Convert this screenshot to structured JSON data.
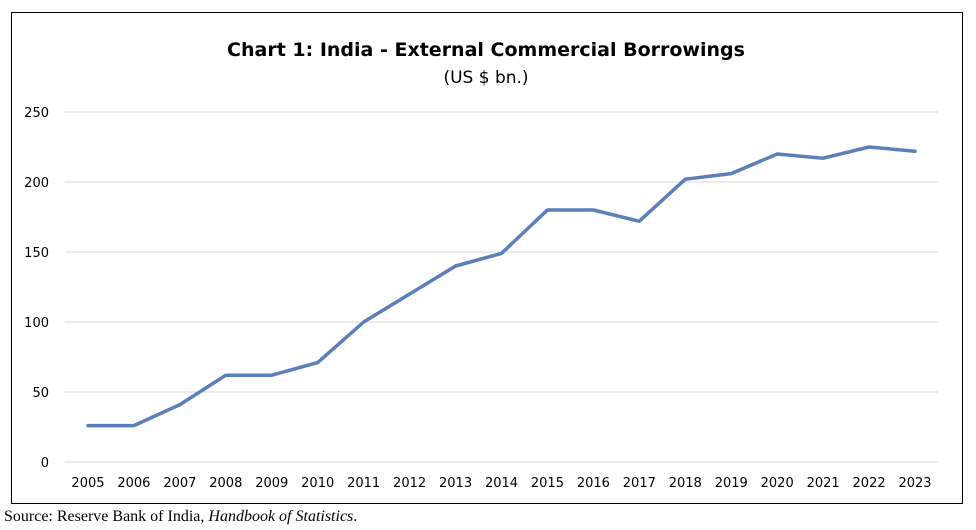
{
  "chart_data": {
    "type": "line",
    "title": "Chart 1: India - External Commercial Borrowings",
    "subtitle": "(US $ bn.)",
    "xlabel": "",
    "ylabel": "",
    "ylim": [
      0,
      250
    ],
    "y_ticks": [
      "0",
      "50",
      "100",
      "150",
      "200",
      "250"
    ],
    "grid": true,
    "legend": "none",
    "categories": [
      "2005",
      "2006",
      "2007",
      "2008",
      "2009",
      "2010",
      "2011",
      "2012",
      "2013",
      "2014",
      "2015",
      "2016",
      "2017",
      "2018",
      "2019",
      "2020",
      "2021",
      "2022",
      "2023"
    ],
    "series": [
      {
        "color": "#5b7fba",
        "values": [
          26,
          26,
          41,
          62,
          62,
          71,
          100,
          120,
          140,
          149,
          180,
          180,
          172,
          202,
          206,
          220,
          217,
          225,
          222
        ]
      }
    ]
  },
  "source": {
    "prefix": "Source: Reserve Bank of India, ",
    "publication": "Handbook of Statistics",
    "suffix": "."
  }
}
